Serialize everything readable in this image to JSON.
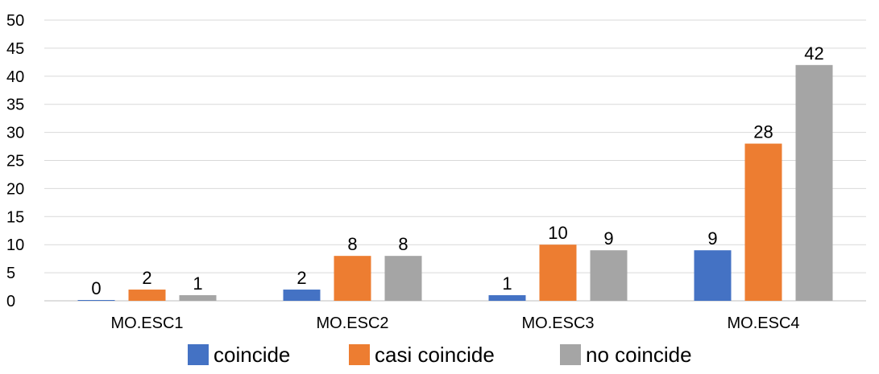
{
  "chart_data": {
    "type": "bar",
    "categories": [
      "MO.ESC1",
      "MO.ESC2",
      "MO.ESC3",
      "MO.ESC4"
    ],
    "series": [
      {
        "name": "coincide",
        "color": "#4472c4",
        "values": [
          0,
          2,
          1,
          9
        ]
      },
      {
        "name": "casi coincide",
        "color": "#ed7d31",
        "values": [
          2,
          8,
          10,
          28
        ]
      },
      {
        "name": "no coincide",
        "color": "#a5a5a5",
        "values": [
          1,
          8,
          9,
          42
        ]
      }
    ],
    "title": "",
    "xlabel": "",
    "ylabel": "",
    "ylim": [
      0,
      50
    ],
    "yticks": [
      0,
      5,
      10,
      15,
      20,
      25,
      30,
      35,
      40,
      45,
      50
    ],
    "grid": true,
    "legend_position": "bottom",
    "data_labels": true
  }
}
